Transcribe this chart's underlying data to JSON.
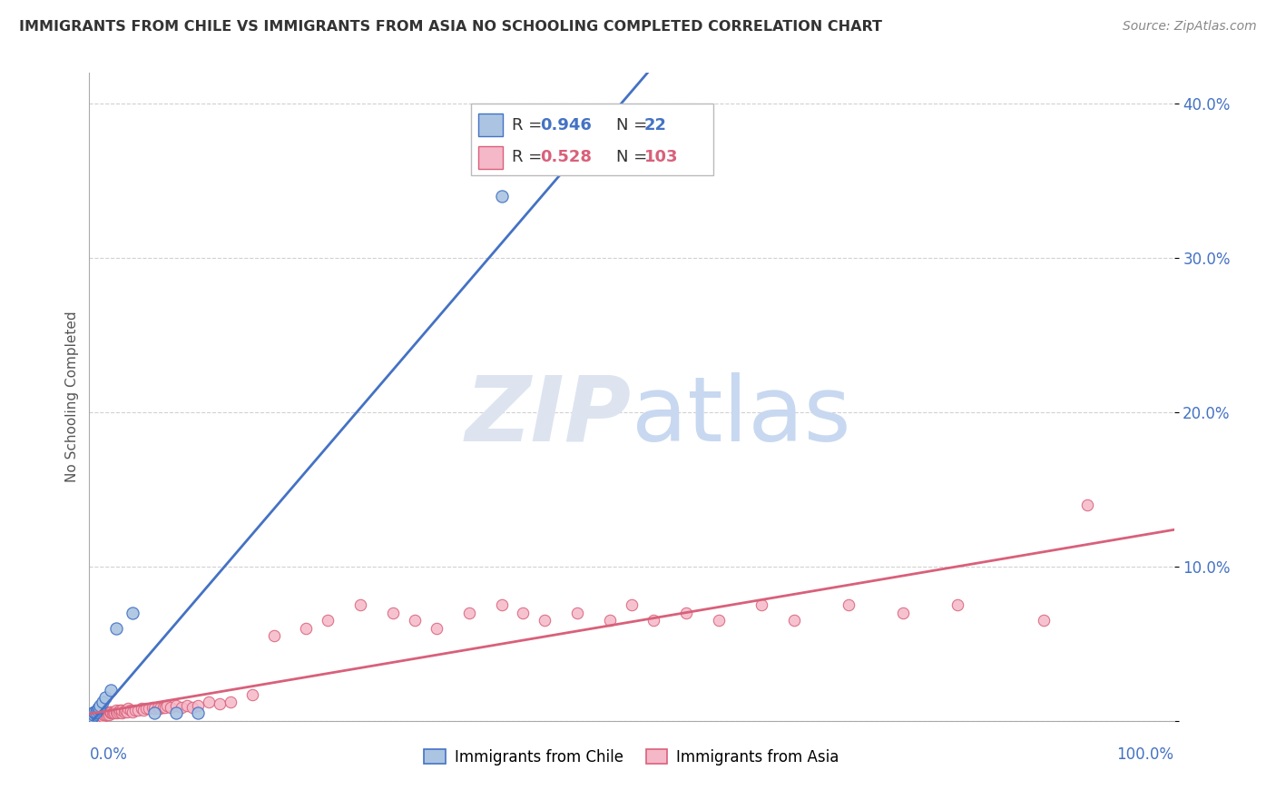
{
  "title": "IMMIGRANTS FROM CHILE VS IMMIGRANTS FROM ASIA NO SCHOOLING COMPLETED CORRELATION CHART",
  "source": "Source: ZipAtlas.com",
  "ylabel": "No Schooling Completed",
  "xlim": [
    0,
    1.0
  ],
  "ylim": [
    0,
    0.42
  ],
  "chile_R": 0.946,
  "chile_N": 22,
  "asia_R": 0.528,
  "asia_N": 103,
  "chile_color": "#aac4e2",
  "chile_edge_color": "#4472c4",
  "asia_color": "#f5b8c8",
  "asia_edge_color": "#d9607a",
  "chile_line_color": "#4472c4",
  "asia_line_color": "#d9607a",
  "background_color": "#ffffff",
  "grid_color": "#cccccc",
  "title_color": "#333333",
  "axis_label_color": "#4472c4",
  "watermark_color": "#dde4f0",
  "chile_x": [
    0.001,
    0.002,
    0.002,
    0.003,
    0.003,
    0.004,
    0.005,
    0.005,
    0.006,
    0.007,
    0.008,
    0.009,
    0.01,
    0.012,
    0.015,
    0.02,
    0.025,
    0.04,
    0.06,
    0.08,
    0.1,
    0.38
  ],
  "chile_y": [
    0.002,
    0.003,
    0.004,
    0.003,
    0.005,
    0.004,
    0.005,
    0.006,
    0.006,
    0.007,
    0.008,
    0.009,
    0.01,
    0.012,
    0.015,
    0.02,
    0.06,
    0.07,
    0.005,
    0.005,
    0.005,
    0.34
  ],
  "asia_x": [
    0.001,
    0.001,
    0.002,
    0.002,
    0.002,
    0.003,
    0.003,
    0.003,
    0.003,
    0.004,
    0.004,
    0.004,
    0.005,
    0.005,
    0.005,
    0.005,
    0.006,
    0.006,
    0.006,
    0.007,
    0.007,
    0.008,
    0.008,
    0.009,
    0.009,
    0.01,
    0.01,
    0.01,
    0.012,
    0.012,
    0.013,
    0.014,
    0.015,
    0.015,
    0.016,
    0.017,
    0.018,
    0.019,
    0.02,
    0.02,
    0.021,
    0.022,
    0.023,
    0.025,
    0.025,
    0.026,
    0.027,
    0.028,
    0.03,
    0.03,
    0.032,
    0.033,
    0.035,
    0.036,
    0.038,
    0.04,
    0.042,
    0.045,
    0.048,
    0.05,
    0.052,
    0.055,
    0.058,
    0.06,
    0.063,
    0.065,
    0.068,
    0.07,
    0.072,
    0.075,
    0.08,
    0.085,
    0.09,
    0.095,
    0.1,
    0.11,
    0.12,
    0.13,
    0.15,
    0.17,
    0.2,
    0.22,
    0.25,
    0.28,
    0.3,
    0.32,
    0.35,
    0.38,
    0.4,
    0.42,
    0.45,
    0.48,
    0.5,
    0.52,
    0.55,
    0.58,
    0.62,
    0.65,
    0.7,
    0.75,
    0.8,
    0.88,
    0.92
  ],
  "asia_y": [
    0.002,
    0.003,
    0.002,
    0.003,
    0.004,
    0.002,
    0.003,
    0.004,
    0.005,
    0.002,
    0.003,
    0.004,
    0.002,
    0.003,
    0.004,
    0.005,
    0.002,
    0.003,
    0.005,
    0.003,
    0.004,
    0.003,
    0.005,
    0.003,
    0.004,
    0.003,
    0.004,
    0.005,
    0.003,
    0.005,
    0.004,
    0.005,
    0.004,
    0.006,
    0.004,
    0.005,
    0.004,
    0.006,
    0.005,
    0.006,
    0.005,
    0.006,
    0.005,
    0.006,
    0.007,
    0.005,
    0.006,
    0.007,
    0.005,
    0.007,
    0.006,
    0.007,
    0.006,
    0.008,
    0.007,
    0.006,
    0.007,
    0.007,
    0.008,
    0.007,
    0.008,
    0.008,
    0.009,
    0.008,
    0.009,
    0.008,
    0.009,
    0.009,
    0.01,
    0.009,
    0.01,
    0.009,
    0.01,
    0.009,
    0.01,
    0.012,
    0.011,
    0.012,
    0.017,
    0.055,
    0.06,
    0.065,
    0.075,
    0.07,
    0.065,
    0.06,
    0.07,
    0.075,
    0.07,
    0.065,
    0.07,
    0.065,
    0.075,
    0.065,
    0.07,
    0.065,
    0.075,
    0.065,
    0.075,
    0.07,
    0.075,
    0.065,
    0.14
  ]
}
